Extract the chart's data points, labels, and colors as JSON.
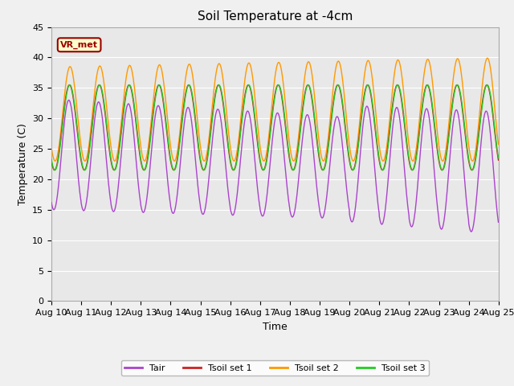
{
  "title": "Soil Temperature at -4cm",
  "xlabel": "Time",
  "ylabel": "Temperature (C)",
  "ylim": [
    0,
    45
  ],
  "yticks": [
    0,
    5,
    10,
    15,
    20,
    25,
    30,
    35,
    40,
    45
  ],
  "xtick_labels": [
    "Aug 10",
    "Aug 11",
    "Aug 12",
    "Aug 13",
    "Aug 14",
    "Aug 15",
    "Aug 16",
    "Aug 17",
    "Aug 18",
    "Aug 19",
    "Aug 20",
    "Aug 21",
    "Aug 22",
    "Aug 23",
    "Aug 24",
    "Aug 25"
  ],
  "colors": {
    "Tair": "#aa44cc",
    "Tsoil1": "#cc2222",
    "Tsoil2": "#ff9900",
    "Tsoil3": "#22cc22"
  },
  "legend_labels": [
    "Tair",
    "Tsoil set 1",
    "Tsoil set 2",
    "Tsoil set 3"
  ],
  "watermark_text": "VR_met",
  "watermark_color": "#990000",
  "watermark_bg": "#ffffcc",
  "background_inner": "#e8e8e8",
  "background_outer": "#f0f0f0",
  "grid_color": "#ffffff",
  "title_fontsize": 11,
  "axis_label_fontsize": 9,
  "tick_fontsize": 8
}
